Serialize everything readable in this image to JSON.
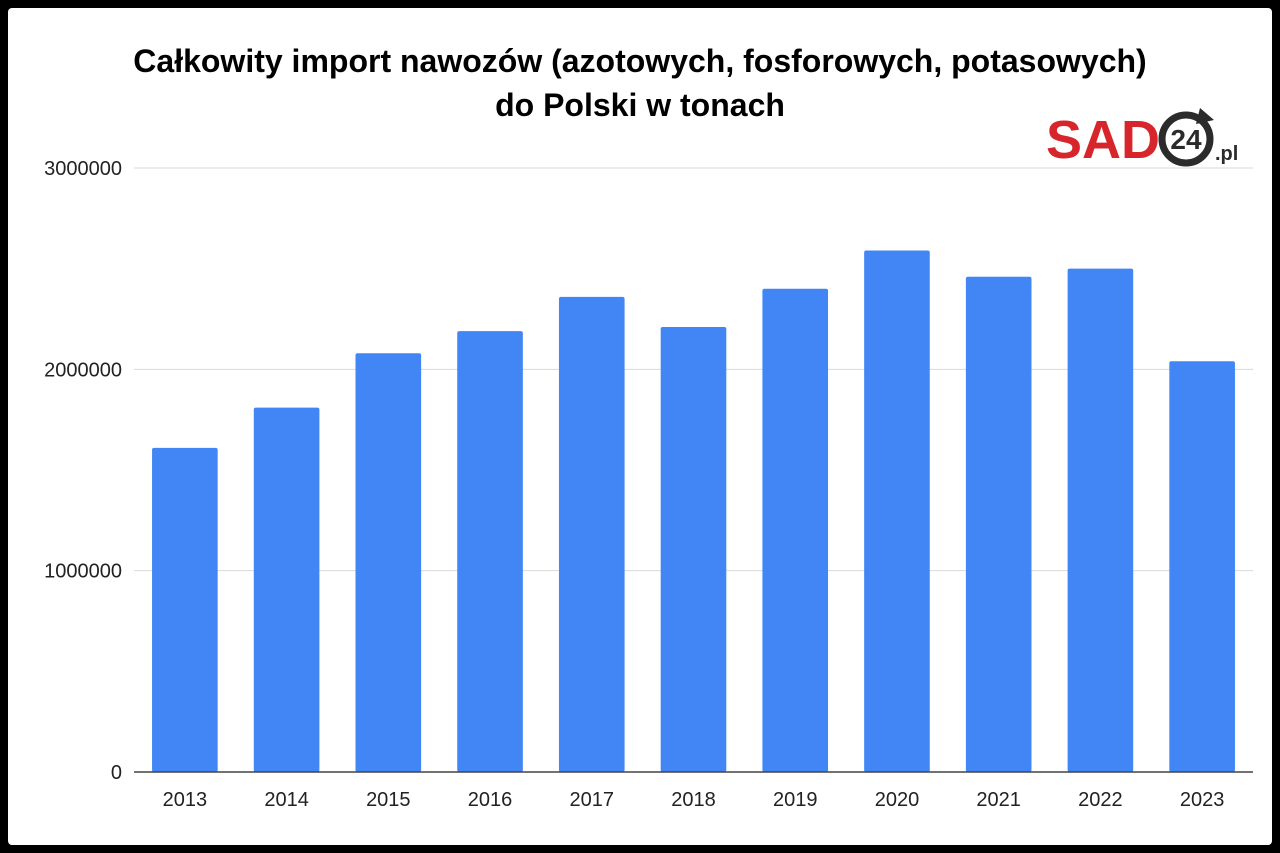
{
  "chart_data": {
    "type": "bar",
    "title": "Całkowity import nawozów (azotowych, fosforowych, potasowych)",
    "subtitle": "do Polski w tonach",
    "categories": [
      "2013",
      "2014",
      "2015",
      "2016",
      "2017",
      "2018",
      "2019",
      "2020",
      "2021",
      "2022",
      "2023"
    ],
    "values": [
      1610000,
      1810000,
      2080000,
      2190000,
      2360000,
      2210000,
      2400000,
      2590000,
      2460000,
      2500000,
      2040000
    ],
    "ylim": [
      0,
      3000000
    ],
    "yticks": [
      "0",
      "1000000",
      "2000000",
      "3000000"
    ],
    "grid": true,
    "legend": "none",
    "xlabel": "",
    "ylabel": "",
    "bar_color": "#4285F4"
  },
  "logo": {
    "brand": "SAD",
    "number": "24",
    "suffix": ".pl",
    "brand_color": "#D7262B",
    "ring_color": "#2B2B2B"
  }
}
